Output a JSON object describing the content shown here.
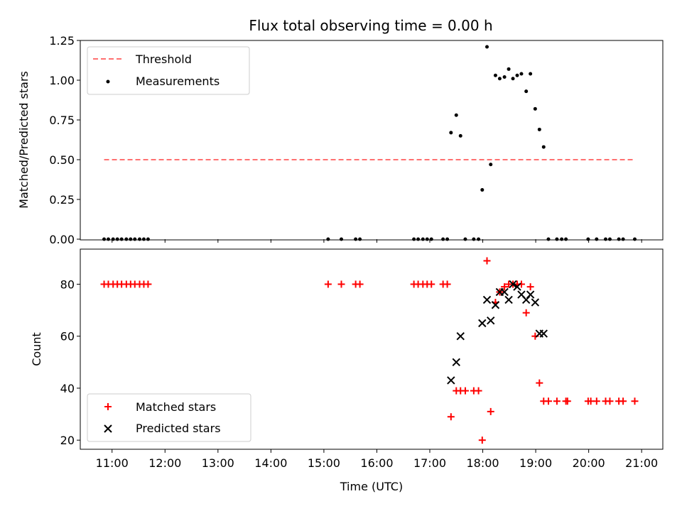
{
  "chart_data": [
    {
      "type": "scatter",
      "title": "Flux total observing time = 0.00 h",
      "xlabel": "",
      "ylabel": "Matched/Predicted stars",
      "xlim": [
        10.4,
        21.4
      ],
      "ylim": [
        0,
        1.25
      ],
      "yticks": [
        "0.00",
        "0.25",
        "0.50",
        "0.75",
        "1.00",
        "1.25"
      ],
      "grid": false,
      "legend": "upper-left",
      "threshold": {
        "name": "Threshold",
        "y": 0.5,
        "x": [
          10.85,
          20.85
        ],
        "color": "#ff7070"
      },
      "series": [
        {
          "name": "Measurements",
          "color": "#000000",
          "points": [
            [
              10.85,
              0
            ],
            [
              10.93,
              0
            ],
            [
              11.02,
              0
            ],
            [
              11.1,
              0
            ],
            [
              11.18,
              0
            ],
            [
              11.27,
              0
            ],
            [
              11.35,
              0
            ],
            [
              11.43,
              0
            ],
            [
              11.52,
              0
            ],
            [
              11.6,
              0
            ],
            [
              11.68,
              0
            ],
            [
              15.08,
              0
            ],
            [
              15.33,
              0
            ],
            [
              15.6,
              0
            ],
            [
              15.68,
              0
            ],
            [
              16.7,
              0
            ],
            [
              16.78,
              0
            ],
            [
              16.87,
              0
            ],
            [
              16.95,
              0
            ],
            [
              17.03,
              0
            ],
            [
              17.25,
              0
            ],
            [
              17.33,
              0
            ],
            [
              17.4,
              0.67
            ],
            [
              17.5,
              0.78
            ],
            [
              17.58,
              0.65
            ],
            [
              17.67,
              0
            ],
            [
              17.83,
              0
            ],
            [
              17.92,
              0
            ],
            [
              17.99,
              0.31
            ],
            [
              18.08,
              1.21
            ],
            [
              18.15,
              0.47
            ],
            [
              18.24,
              1.03
            ],
            [
              18.32,
              1.01
            ],
            [
              18.41,
              1.02
            ],
            [
              18.49,
              1.07
            ],
            [
              18.57,
              1.01
            ],
            [
              18.65,
              1.03
            ],
            [
              18.73,
              1.04
            ],
            [
              18.82,
              0.93
            ],
            [
              18.9,
              1.04
            ],
            [
              18.99,
              0.82
            ],
            [
              19.07,
              0.69
            ],
            [
              19.15,
              0.58
            ],
            [
              19.24,
              0
            ],
            [
              19.4,
              0
            ],
            [
              19.49,
              0
            ],
            [
              19.57,
              0
            ],
            [
              19.99,
              0
            ],
            [
              20.15,
              0
            ],
            [
              20.32,
              0
            ],
            [
              20.4,
              0
            ],
            [
              20.57,
              0
            ],
            [
              20.65,
              0
            ],
            [
              20.87,
              0
            ]
          ]
        }
      ]
    },
    {
      "type": "scatter",
      "title": "",
      "xlabel": "Time (UTC)",
      "ylabel": "Count",
      "xlim": [
        10.4,
        21.4
      ],
      "ylim": [
        16.5,
        93.5
      ],
      "yticks": [
        "20",
        "40",
        "60",
        "80"
      ],
      "xticks": [
        "11:00",
        "12:00",
        "13:00",
        "14:00",
        "15:00",
        "16:00",
        "17:00",
        "18:00",
        "19:00",
        "20:00",
        "21:00"
      ],
      "grid": false,
      "legend": "lower-left",
      "series": [
        {
          "name": "Matched stars",
          "marker": "plus",
          "color": "#ff0000",
          "points": [
            [
              10.85,
              80
            ],
            [
              10.93,
              80
            ],
            [
              11.02,
              80
            ],
            [
              11.1,
              80
            ],
            [
              11.18,
              80
            ],
            [
              11.27,
              80
            ],
            [
              11.35,
              80
            ],
            [
              11.43,
              80
            ],
            [
              11.52,
              80
            ],
            [
              11.6,
              80
            ],
            [
              11.68,
              80
            ],
            [
              15.08,
              80
            ],
            [
              15.33,
              80
            ],
            [
              15.6,
              80
            ],
            [
              15.68,
              80
            ],
            [
              16.7,
              80
            ],
            [
              16.78,
              80
            ],
            [
              16.87,
              80
            ],
            [
              16.95,
              80
            ],
            [
              17.03,
              80
            ],
            [
              17.25,
              80
            ],
            [
              17.33,
              80
            ],
            [
              17.4,
              29
            ],
            [
              17.5,
              39
            ],
            [
              17.58,
              39
            ],
            [
              17.67,
              39
            ],
            [
              17.83,
              39
            ],
            [
              17.92,
              39
            ],
            [
              17.99,
              20
            ],
            [
              18.08,
              89
            ],
            [
              18.15,
              31
            ],
            [
              18.24,
              73
            ],
            [
              18.32,
              77
            ],
            [
              18.41,
              79
            ],
            [
              18.49,
              80
            ],
            [
              18.57,
              80
            ],
            [
              18.65,
              80
            ],
            [
              18.73,
              80
            ],
            [
              18.82,
              69
            ],
            [
              18.9,
              79
            ],
            [
              18.99,
              60
            ],
            [
              19.07,
              42
            ],
            [
              19.15,
              35
            ],
            [
              19.24,
              35
            ],
            [
              19.4,
              35
            ],
            [
              19.57,
              35
            ],
            [
              19.6,
              35
            ],
            [
              19.99,
              35
            ],
            [
              20.04,
              35
            ],
            [
              20.15,
              35
            ],
            [
              20.32,
              35
            ],
            [
              20.4,
              35
            ],
            [
              20.57,
              35
            ],
            [
              20.65,
              35
            ],
            [
              20.87,
              35
            ]
          ]
        },
        {
          "name": "Predicted stars",
          "marker": "x",
          "color": "#000000",
          "points": [
            [
              17.4,
              43
            ],
            [
              17.5,
              50
            ],
            [
              17.58,
              60
            ],
            [
              17.99,
              65
            ],
            [
              18.08,
              74
            ],
            [
              18.15,
              66
            ],
            [
              18.24,
              72
            ],
            [
              18.32,
              77
            ],
            [
              18.41,
              77
            ],
            [
              18.49,
              74
            ],
            [
              18.57,
              80
            ],
            [
              18.65,
              79
            ],
            [
              18.73,
              76
            ],
            [
              18.82,
              74
            ],
            [
              18.9,
              76
            ],
            [
              18.99,
              73
            ],
            [
              19.07,
              61
            ],
            [
              19.15,
              61
            ]
          ]
        }
      ]
    }
  ]
}
